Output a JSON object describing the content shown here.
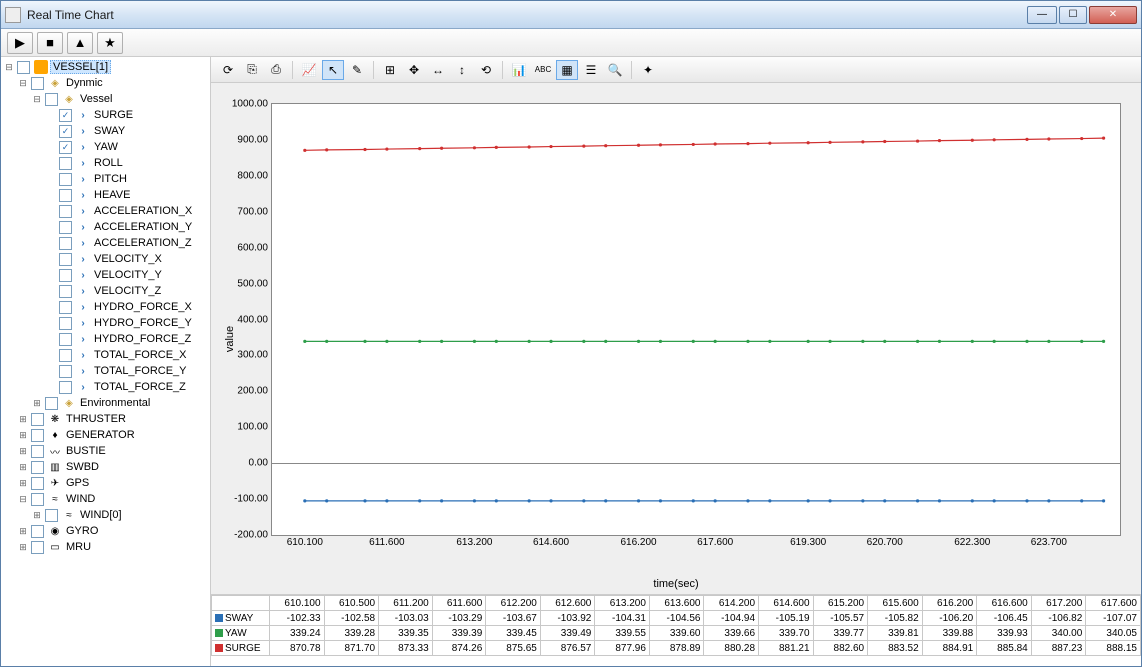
{
  "window": {
    "title": "Real Time Chart"
  },
  "toolbar": {
    "play": "▶",
    "stop": "■",
    "up": "▲",
    "star": "★"
  },
  "tree": {
    "root": {
      "label": "VESSEL[1]",
      "selected": true
    },
    "dynamic": {
      "label": "Dynmic"
    },
    "vessel": {
      "label": "Vessel"
    },
    "vessel_items": [
      {
        "label": "SURGE",
        "checked": true
      },
      {
        "label": "SWAY",
        "checked": true
      },
      {
        "label": "YAW",
        "checked": true
      },
      {
        "label": "ROLL",
        "checked": false
      },
      {
        "label": "PITCH",
        "checked": false
      },
      {
        "label": "HEAVE",
        "checked": false
      },
      {
        "label": "ACCELERATION_X",
        "checked": false
      },
      {
        "label": "ACCELERATION_Y",
        "checked": false
      },
      {
        "label": "ACCELERATION_Z",
        "checked": false
      },
      {
        "label": "VELOCITY_X",
        "checked": false
      },
      {
        "label": "VELOCITY_Y",
        "checked": false
      },
      {
        "label": "VELOCITY_Z",
        "checked": false
      },
      {
        "label": "HYDRO_FORCE_X",
        "checked": false
      },
      {
        "label": "HYDRO_FORCE_Y",
        "checked": false
      },
      {
        "label": "HYDRO_FORCE_Z",
        "checked": false
      },
      {
        "label": "TOTAL_FORCE_X",
        "checked": false
      },
      {
        "label": "TOTAL_FORCE_Y",
        "checked": false
      },
      {
        "label": "TOTAL_FORCE_Z",
        "checked": false
      }
    ],
    "environmental": {
      "label": "Environmental"
    },
    "other_nodes": [
      {
        "label": "THRUSTER",
        "icon": "thruster"
      },
      {
        "label": "GENERATOR",
        "icon": "gen"
      },
      {
        "label": "BUSTIE",
        "icon": "bustie"
      },
      {
        "label": "SWBD",
        "icon": "swbd"
      },
      {
        "label": "GPS",
        "icon": "gps"
      },
      {
        "label": "WIND",
        "icon": "wind",
        "expanded": true,
        "child": "WIND[0]"
      },
      {
        "label": "GYRO",
        "icon": "gyro"
      },
      {
        "label": "MRU",
        "icon": "mru"
      }
    ]
  },
  "chart": {
    "ylabel": "value",
    "xlabel": "time(sec)",
    "ylim": [
      -200,
      1000
    ],
    "yticks": [
      -200,
      -100,
      0,
      100,
      200,
      300,
      400,
      500,
      600,
      700,
      800,
      900,
      1000
    ],
    "xlim": [
      609.5,
      625.0
    ],
    "xticks": [
      610.1,
      611.6,
      613.2,
      614.6,
      616.2,
      617.6,
      619.3,
      620.7,
      622.3,
      623.7
    ],
    "xtick_labels": [
      "610.100",
      "611.600",
      "613.200",
      "614.600",
      "616.200",
      "617.600",
      "619.300",
      "620.700",
      "622.300",
      "623.700"
    ],
    "background_color": "#efefef",
    "plot_bg": "#ffffff",
    "grid_color": "#dddddd",
    "series": [
      {
        "name": "SWAY",
        "color": "#2a6fb5",
        "marker": "■",
        "y_approx": -105
      },
      {
        "name": "YAW",
        "color": "#2e9e4a",
        "marker": "●",
        "y_approx": 339
      },
      {
        "name": "SURGE",
        "color": "#d03030",
        "marker": "▲",
        "y_start": 871,
        "y_end": 905
      }
    ],
    "x_points": [
      610.1,
      610.5,
      611.2,
      611.6,
      612.2,
      612.6,
      613.2,
      613.6,
      614.2,
      614.6,
      615.2,
      615.6,
      616.2,
      616.6,
      617.2,
      617.6,
      618.2,
      618.6,
      619.3,
      619.7,
      620.3,
      620.7,
      621.3,
      621.7,
      622.3,
      622.7,
      623.3,
      623.7,
      624.3,
      624.7
    ]
  },
  "table": {
    "time_header": [
      "610.100",
      "610.500",
      "611.200",
      "611.600",
      "612.200",
      "612.600",
      "613.200",
      "613.600",
      "614.200",
      "614.600",
      "615.200",
      "615.600",
      "616.200",
      "616.600",
      "617.200",
      "617.600"
    ],
    "rows": [
      {
        "name": "SWAY",
        "color": "#2a6fb5",
        "values": [
          "-102.33",
          "-102.58",
          "-103.03",
          "-103.29",
          "-103.67",
          "-103.92",
          "-104.31",
          "-104.56",
          "-104.94",
          "-105.19",
          "-105.57",
          "-105.82",
          "-106.20",
          "-106.45",
          "-106.82",
          "-107.07"
        ]
      },
      {
        "name": "YAW",
        "color": "#2e9e4a",
        "values": [
          "339.24",
          "339.28",
          "339.35",
          "339.39",
          "339.45",
          "339.49",
          "339.55",
          "339.60",
          "339.66",
          "339.70",
          "339.77",
          "339.81",
          "339.88",
          "339.93",
          "340.00",
          "340.05"
        ]
      },
      {
        "name": "SURGE",
        "color": "#d03030",
        "values": [
          "870.78",
          "871.70",
          "873.33",
          "874.26",
          "875.65",
          "876.57",
          "877.96",
          "878.89",
          "880.28",
          "881.21",
          "882.60",
          "883.52",
          "884.91",
          "885.84",
          "887.23",
          "888.15"
        ]
      }
    ]
  }
}
